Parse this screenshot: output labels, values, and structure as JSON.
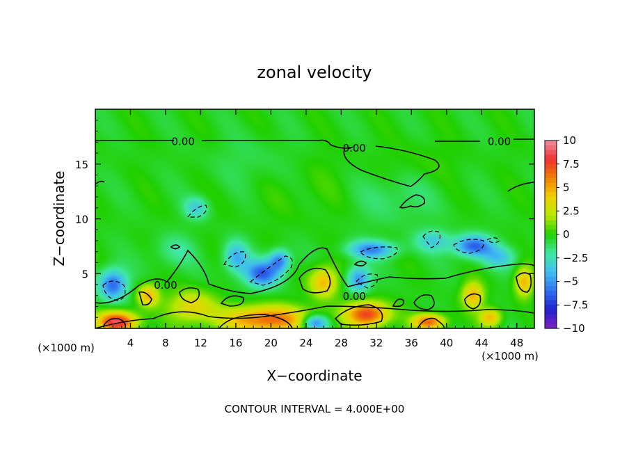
{
  "chart_data": {
    "type": "heatmap",
    "title": "zonal velocity",
    "xlabel": "X−coordinate",
    "ylabel": "Z−coordinate",
    "x_unit_left": "(×1000 m)",
    "x_unit_right": "(×1000 m)",
    "xlim": [
      0,
      50
    ],
    "ylim": [
      0,
      20
    ],
    "x_ticks": [
      4,
      8,
      12,
      16,
      20,
      24,
      28,
      32,
      36,
      40,
      44,
      48
    ],
    "y_ticks": [
      5,
      10,
      15
    ],
    "contour_labels": [
      {
        "text": "0.00",
        "x": 10.0,
        "z": 17.1
      },
      {
        "text": "0.00",
        "x": 29.5,
        "z": 16.5
      },
      {
        "text": "0.00",
        "x": 46.0,
        "z": 17.1
      },
      {
        "text": "0.00",
        "x": 8.0,
        "z": 4.0
      },
      {
        "text": "0.00",
        "x": 29.5,
        "z": 3.0
      }
    ],
    "contour_interval_text": "CONTOUR INTERVAL =  4.000E+00",
    "colorbar": {
      "labels": [
        "10",
        "7.5",
        "5",
        "2.5",
        "0",
        "−2.5",
        "−5",
        "−7.5",
        "−10"
      ],
      "min": -10,
      "max": 10,
      "stops": [
        "#f090a0",
        "#f03030",
        "#f08000",
        "#f0d000",
        "#b8e800",
        "#20d000",
        "#40e8a0",
        "#40c0f0",
        "#3070f0",
        "#2020d0",
        "#8020c0"
      ]
    },
    "features": [
      {
        "x": 2.0,
        "z": 4.0,
        "rx": 1.6,
        "rz": 1.4,
        "v": -6
      },
      {
        "x": 6.0,
        "z": 3.0,
        "rx": 1.2,
        "rz": 1.0,
        "v": 5
      },
      {
        "x": 2.5,
        "z": 0.6,
        "rx": 2.2,
        "rz": 0.9,
        "v": 9
      },
      {
        "x": 11.5,
        "z": 11.0,
        "rx": 1.4,
        "rz": 1.0,
        "v": -3
      },
      {
        "x": 16.0,
        "z": 6.5,
        "rx": 1.4,
        "rz": 1.4,
        "v": -4
      },
      {
        "x": 19.0,
        "z": 5.0,
        "rx": 2.0,
        "rz": 1.2,
        "v": -6
      },
      {
        "x": 21.0,
        "z": 6.2,
        "rx": 1.2,
        "rz": 1.0,
        "v": -5
      },
      {
        "x": 11.0,
        "z": 2.0,
        "rx": 2.6,
        "rz": 1.4,
        "v": 4
      },
      {
        "x": 19.5,
        "z": 0.8,
        "rx": 5.0,
        "rz": 1.2,
        "v": 7
      },
      {
        "x": 26.0,
        "z": 4.2,
        "rx": 1.6,
        "rz": 1.4,
        "v": 5
      },
      {
        "x": 25.0,
        "z": 0.5,
        "rx": 1.5,
        "rz": 0.7,
        "v": -6
      },
      {
        "x": 31.0,
        "z": 1.3,
        "rx": 2.4,
        "rz": 1.1,
        "v": 8
      },
      {
        "x": 30.0,
        "z": 4.5,
        "rx": 1.3,
        "rz": 1.2,
        "v": -5
      },
      {
        "x": 31.5,
        "z": 7.2,
        "rx": 2.8,
        "rz": 0.8,
        "v": -5
      },
      {
        "x": 38.0,
        "z": 0.6,
        "rx": 1.8,
        "rz": 0.7,
        "v": 7
      },
      {
        "x": 38.5,
        "z": 8.0,
        "rx": 2.0,
        "rz": 1.0,
        "v": -3
      },
      {
        "x": 43.0,
        "z": 7.5,
        "rx": 2.2,
        "rz": 1.0,
        "v": -6
      },
      {
        "x": 43.0,
        "z": 3.0,
        "rx": 1.2,
        "rz": 1.2,
        "v": 5
      },
      {
        "x": 45.0,
        "z": 1.0,
        "rx": 1.2,
        "rz": 0.8,
        "v": 5
      },
      {
        "x": 48.8,
        "z": 4.2,
        "rx": 1.0,
        "rz": 1.3,
        "v": 5
      },
      {
        "x": 24.0,
        "z": 13.0,
        "rx": 8.0,
        "rz": 3.0,
        "v": 0.5
      },
      {
        "x": 34.0,
        "z": 12.0,
        "rx": 5.0,
        "rz": 2.5,
        "v": -1.2
      },
      {
        "x": 18.0,
        "z": 15.0,
        "rx": 5.0,
        "rz": 2.5,
        "v": -0.8
      },
      {
        "x": 37.0,
        "z": 15.0,
        "rx": 4.0,
        "rz": 2.0,
        "v": 0.6
      },
      {
        "x": 9.0,
        "z": 7.0,
        "rx": 2.5,
        "rz": 1.5,
        "v": -1.5
      },
      {
        "x": 46.0,
        "z": 6.5,
        "rx": 2.0,
        "rz": 1.0,
        "v": -3
      }
    ]
  }
}
